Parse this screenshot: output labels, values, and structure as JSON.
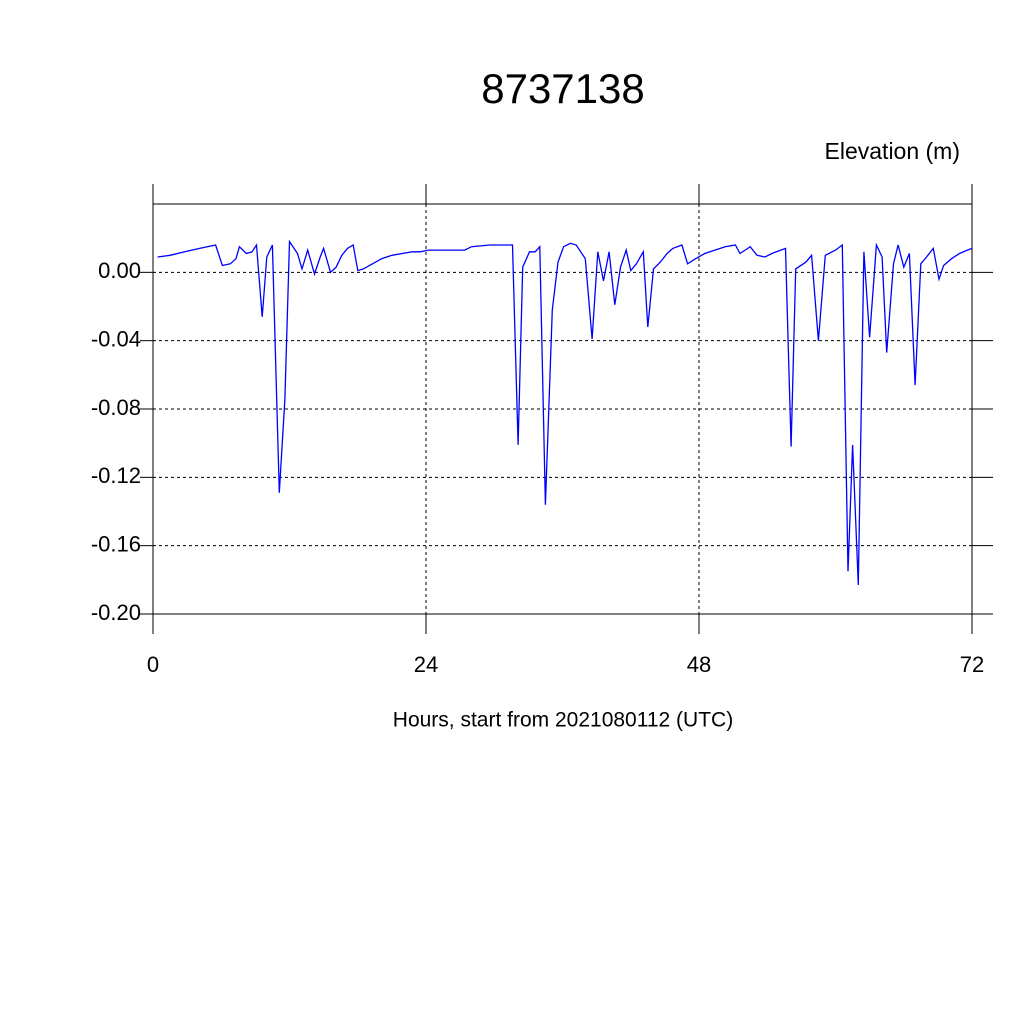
{
  "chart_data": {
    "type": "line",
    "title": "8737138",
    "ylabel": "Elevation (m)",
    "xlabel": "Hours, start from 2021080112 (UTC)",
    "xlim": [
      0,
      72
    ],
    "xticks": [
      0,
      24,
      48,
      72
    ],
    "ylim": [
      -0.2,
      0.04
    ],
    "yticks": [
      {
        "value": -0.2,
        "label": "-0.20"
      },
      {
        "value": -0.16,
        "label": "-0.16"
      },
      {
        "value": -0.12,
        "label": "-0.12"
      },
      {
        "value": -0.08,
        "label": "-0.08"
      },
      {
        "value": -0.04,
        "label": "-0.04"
      },
      {
        "value": 0,
        "label": "0.00"
      }
    ],
    "grid": true,
    "series": [
      {
        "color": "#0000ff",
        "x": [
          0.4,
          1.5,
          2.8,
          4.1,
          5.5,
          6.1,
          6.8,
          7.3,
          7.6,
          8.2,
          8.7,
          9.1,
          9.6,
          10.0,
          10.5,
          11.1,
          11.6,
          12.0,
          12.7,
          13.1,
          13.6,
          14.2,
          14.7,
          15.0,
          15.6,
          16.1,
          16.6,
          17.1,
          17.6,
          18.0,
          18.5,
          19.3,
          20.1,
          21.0,
          21.9,
          22.8,
          23.5,
          24.2,
          25.7,
          27.4,
          28.0,
          29.6,
          30.9,
          31.6,
          32.1,
          32.5,
          33.1,
          33.6,
          34.0,
          34.5,
          35.1,
          35.6,
          36.1,
          36.7,
          37.2,
          38.0,
          38.6,
          39.1,
          39.6,
          40.1,
          40.6,
          41.1,
          41.6,
          42.0,
          42.5,
          43.1,
          43.5,
          44.0,
          44.6,
          45.2,
          45.7,
          46.5,
          47.0,
          47.7,
          48.5,
          49.4,
          50.3,
          51.2,
          51.6,
          52.5,
          53.1,
          53.8,
          54.4,
          55.6,
          56.1,
          56.5,
          57.4,
          57.9,
          58.5,
          59.1,
          60.0,
          60.6,
          61.1,
          61.5,
          62.0,
          62.5,
          63.0,
          63.6,
          64.1,
          64.5,
          65.1,
          65.5,
          66.0,
          66.5,
          67.0,
          67.5,
          68.0,
          68.6,
          69.1,
          69.5,
          70.2,
          70.9,
          71.6,
          72.0
        ],
        "values": [
          0.009,
          0.01,
          0.012,
          0.014,
          0.016,
          0.004,
          0.005,
          0.008,
          0.015,
          0.011,
          0.012,
          0.016,
          -0.026,
          0.009,
          0.016,
          -0.129,
          -0.074,
          0.018,
          0.011,
          0.002,
          0.013,
          -0.001,
          0.009,
          0.014,
          0.0,
          0.003,
          0.01,
          0.014,
          0.016,
          0.001,
          0.002,
          0.005,
          0.008,
          0.01,
          0.011,
          0.012,
          0.012,
          0.013,
          0.013,
          0.013,
          0.015,
          0.016,
          0.016,
          0.016,
          -0.101,
          0.003,
          0.012,
          0.012,
          0.015,
          -0.136,
          -0.022,
          0.006,
          0.015,
          0.017,
          0.016,
          0.008,
          -0.039,
          0.012,
          -0.005,
          0.012,
          -0.019,
          0.003,
          0.013,
          0.001,
          0.005,
          0.012,
          -0.032,
          0.002,
          0.006,
          0.011,
          0.014,
          0.016,
          0.005,
          0.008,
          0.011,
          0.013,
          0.015,
          0.016,
          0.011,
          0.015,
          0.01,
          0.009,
          0.011,
          0.014,
          -0.102,
          0.002,
          0.006,
          0.01,
          -0.04,
          0.01,
          0.013,
          0.016,
          -0.175,
          -0.101,
          -0.183,
          0.012,
          -0.038,
          0.016,
          0.009,
          -0.047,
          0.005,
          0.016,
          0.003,
          0.011,
          -0.066,
          0.005,
          0.009,
          0.014,
          -0.004,
          0.004,
          0.008,
          0.011,
          0.013,
          0.014
        ]
      }
    ]
  }
}
